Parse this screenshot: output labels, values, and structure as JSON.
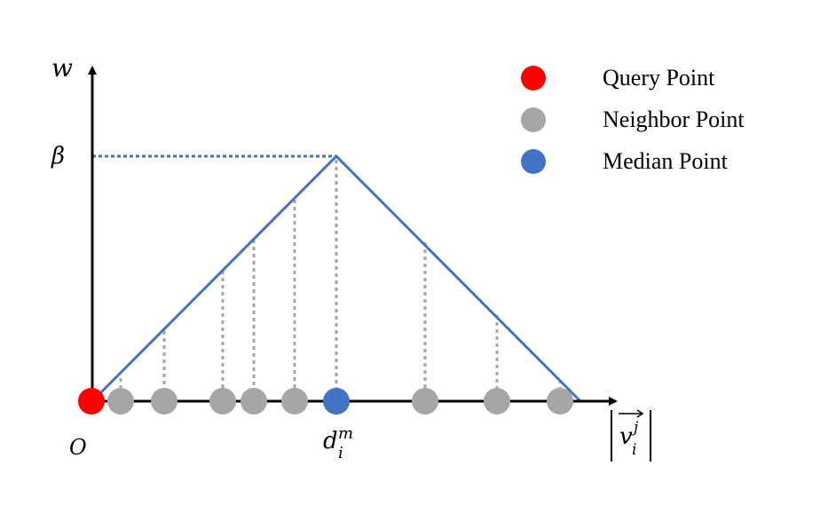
{
  "axes": {
    "y_label": "w",
    "beta_label": "β",
    "origin_label": "O",
    "median_label": "d",
    "median_sub": "i",
    "median_sup": "m",
    "x_label_base": "v",
    "x_label_sub": "i",
    "x_label_sup": "j"
  },
  "legend": [
    {
      "label": "Query Point",
      "color": "#ff0000"
    },
    {
      "label": "Neighbor Point",
      "color": "#a6a6a6"
    },
    {
      "label": "Median Point",
      "color": "#4472c4"
    }
  ],
  "colors": {
    "query": "#ff0000",
    "neighbor": "#a6a6a6",
    "median": "#4472c4",
    "line": "#4472c4",
    "dotted": "#a6a6a6"
  }
}
